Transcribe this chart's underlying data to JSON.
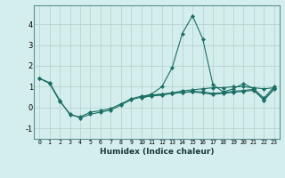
{
  "xlabel": "Humidex (Indice chaleur)",
  "background_color": "#d4eeed",
  "grid_color": "#b8d4d0",
  "line_color": "#1a6e64",
  "xlim": [
    -0.5,
    23.5
  ],
  "ylim": [
    -1.5,
    4.9
  ],
  "yticks": [
    -1,
    0,
    1,
    2,
    3,
    4
  ],
  "xticks": [
    0,
    1,
    2,
    3,
    4,
    5,
    6,
    7,
    8,
    9,
    10,
    11,
    12,
    13,
    14,
    15,
    16,
    17,
    18,
    19,
    20,
    21,
    22,
    23
  ],
  "series": [
    [
      1.4,
      1.2,
      0.35,
      -0.35,
      -0.45,
      -0.22,
      -0.15,
      -0.05,
      0.18,
      0.42,
      0.55,
      0.6,
      0.65,
      0.7,
      0.8,
      0.85,
      0.9,
      0.95,
      0.95,
      1.0,
      1.0,
      0.95,
      0.9,
      0.95
    ],
    [
      1.4,
      1.15,
      0.3,
      -0.3,
      -0.5,
      -0.32,
      -0.22,
      -0.12,
      0.12,
      0.38,
      0.5,
      0.55,
      0.6,
      0.68,
      0.72,
      0.78,
      0.75,
      0.68,
      0.72,
      0.78,
      0.82,
      0.88,
      0.35,
      0.92
    ],
    [
      null,
      null,
      null,
      null,
      null,
      null,
      null,
      null,
      null,
      null,
      0.5,
      0.65,
      1.0,
      1.9,
      3.55,
      4.4,
      3.3,
      1.1,
      0.75,
      0.9,
      1.15,
      0.9,
      0.45,
      1.0
    ],
    [
      null,
      null,
      null,
      null,
      null,
      null,
      null,
      null,
      null,
      null,
      0.45,
      0.58,
      0.62,
      0.68,
      0.72,
      0.75,
      0.7,
      0.63,
      0.68,
      0.73,
      0.78,
      0.82,
      0.36,
      0.88
    ]
  ]
}
